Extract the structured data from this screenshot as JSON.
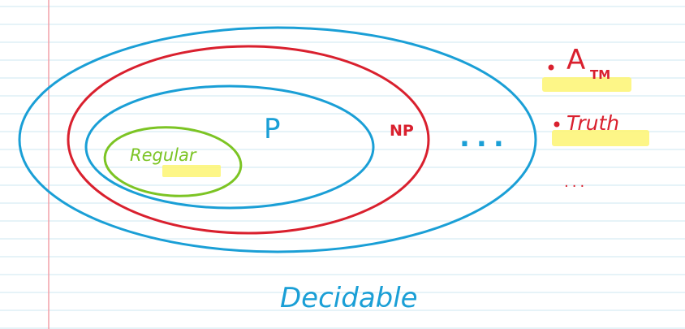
{
  "diagram": {
    "classes": {
      "regular": "Regular",
      "p": "P",
      "np": "NP",
      "decidable": "Decidable",
      "continuation": "..."
    },
    "examples": {
      "atm_base": "A",
      "atm_subscript": "TM",
      "truth": "Truth",
      "more": "..."
    }
  },
  "colors": {
    "decidable": "#1a9fd6",
    "np": "#d9202e",
    "p": "#1a9fd6",
    "regular": "#7cc424",
    "highlight": "#fdf57a",
    "examples": "#d9202e",
    "rule_lines": "#cde7f0",
    "margin_line": "#f2a0a8"
  }
}
